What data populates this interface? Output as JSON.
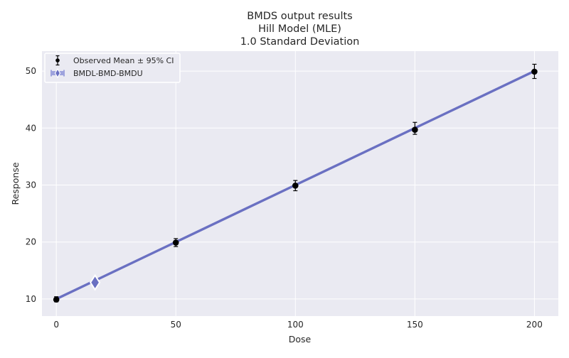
{
  "chart_data": {
    "type": "line",
    "title_lines": [
      "BMDS output results",
      "Hill Model (MLE)",
      "1.0 Standard Deviation"
    ],
    "xlabel": "Dose",
    "ylabel": "Response",
    "xlim": [
      -6,
      210
    ],
    "ylim": [
      7,
      53.5
    ],
    "xticks": [
      0,
      50,
      100,
      150,
      200
    ],
    "xtick_labels": [
      "0",
      "50",
      "100",
      "150",
      "200"
    ],
    "yticks": [
      10,
      20,
      30,
      40,
      50
    ],
    "ytick_labels": [
      "10",
      "20",
      "30",
      "40",
      "50"
    ],
    "grid": true,
    "legend_position": "top-left",
    "observed": {
      "name": "Observed Mean ± 95% CI",
      "x": [
        0,
        50,
        100,
        150,
        200
      ],
      "y": [
        9.9,
        19.9,
        29.9,
        39.7,
        49.9
      ],
      "ci_low": [
        9.5,
        19.2,
        29.0,
        38.9,
        48.7
      ],
      "ci_high": [
        10.4,
        20.6,
        30.8,
        41.0,
        51.2
      ]
    },
    "model": {
      "x": [
        0,
        20,
        40,
        60,
        80,
        100,
        120,
        140,
        160,
        180,
        200
      ],
      "y": [
        10.0,
        14.0,
        18.0,
        22.0,
        26.0,
        30.0,
        34.0,
        38.0,
        42.0,
        46.0,
        50.0
      ]
    },
    "bmd": {
      "name": "BMDL-BMD-BMDU",
      "bmdl": 15.4,
      "bmd": 16.2,
      "bmdu": 17.0,
      "response": 12.9
    },
    "colors": {
      "background": "#eaeaf2",
      "grid": "#ffffff",
      "model_line": "#6a70c2",
      "observed": "#000000",
      "bmd_marker": "#6a70c2",
      "bmd_range": "#9ea3dd"
    }
  }
}
